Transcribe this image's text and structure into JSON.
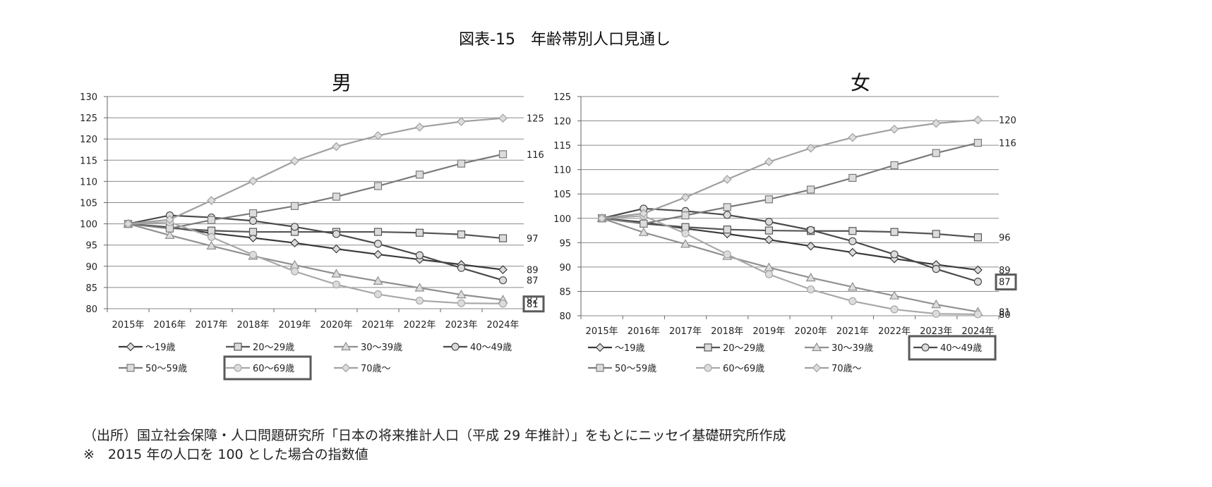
{
  "page": {
    "title": "図表-15　年齢帯別人口見通し",
    "source_note": "（出所）国立社会保障・人口問題研究所「日本の将来推計人口（平成 29 年推計）」をもとにニッセイ基礎研究所作成",
    "base_note": "※　2015 年の人口を 100 とした場合の指数値"
  },
  "chart_data": [
    {
      "type": "line",
      "title": "男",
      "categories": [
        "2015年",
        "2016年",
        "2017年",
        "2018年",
        "2019年",
        "2020年",
        "2021年",
        "2022年",
        "2023年",
        "2024年"
      ],
      "ylim": [
        80,
        130
      ],
      "yticks": [
        80,
        85,
        90,
        95,
        100,
        105,
        110,
        115,
        120,
        125,
        130
      ],
      "grid": true,
      "legend": "bottom",
      "series": [
        {
          "name": "～19歳",
          "marker": "diamond",
          "color": "#3a3a3a",
          "values": [
            100,
            99.2,
            97.8,
            96.7,
            95.5,
            94.1,
            92.8,
            91.6,
            90.4,
            89.2
          ],
          "end_label": "89"
        },
        {
          "name": "20～29歳",
          "marker": "square",
          "color": "#555555",
          "values": [
            100,
            99.0,
            98.4,
            98.1,
            98.1,
            98.1,
            98.1,
            97.9,
            97.5,
            96.6
          ],
          "end_label": "97"
        },
        {
          "name": "30～39歳",
          "marker": "triangle",
          "color": "#909090",
          "values": [
            100,
            97.3,
            94.8,
            92.4,
            90.3,
            88.2,
            86.5,
            84.9,
            83.3,
            82.1
          ],
          "end_label": "82"
        },
        {
          "name": "40～49歳",
          "marker": "circle",
          "color": "#4a4a4a",
          "values": [
            100,
            102.0,
            101.5,
            100.7,
            99.3,
            97.6,
            95.3,
            92.6,
            89.6,
            86.7
          ],
          "end_label": "87"
        },
        {
          "name": "50～59歳",
          "marker": "square",
          "color": "#7a7a7a",
          "values": [
            100,
            98.9,
            100.9,
            102.5,
            104.2,
            106.4,
            108.9,
            111.6,
            114.2,
            116.4
          ],
          "end_label": "116"
        },
        {
          "name": "60～69歳",
          "marker": "circle",
          "color": "#a8a8a8",
          "values": [
            100,
            100.4,
            96.9,
            92.7,
            88.8,
            85.7,
            83.4,
            81.9,
            81.3,
            81.2
          ],
          "end_label": "81",
          "highlight": true
        },
        {
          "name": "70歳～",
          "marker": "diamond",
          "color": "#a0a0a0",
          "values": [
            100,
            101.0,
            105.5,
            110.1,
            114.8,
            118.2,
            120.8,
            122.8,
            124.1,
            124.9
          ],
          "end_label": "125"
        }
      ]
    },
    {
      "type": "line",
      "title": "女",
      "categories": [
        "2015年",
        "2016年",
        "2017年",
        "2018年",
        "2019年",
        "2020年",
        "2021年",
        "2022年",
        "2023年",
        "2024年"
      ],
      "ylim": [
        80,
        125
      ],
      "yticks": [
        80,
        85,
        90,
        95,
        100,
        105,
        110,
        115,
        120,
        125
      ],
      "grid": true,
      "legend": "bottom",
      "series": [
        {
          "name": "～19歳",
          "marker": "diamond",
          "color": "#3a3a3a",
          "values": [
            100,
            99.2,
            97.9,
            96.8,
            95.6,
            94.3,
            93.0,
            91.7,
            90.5,
            89.4
          ],
          "end_label": "89"
        },
        {
          "name": "20～29歳",
          "marker": "square",
          "color": "#555555",
          "values": [
            100,
            98.9,
            98.2,
            97.7,
            97.5,
            97.4,
            97.4,
            97.2,
            96.8,
            96.1
          ],
          "end_label": "96"
        },
        {
          "name": "30～39歳",
          "marker": "triangle",
          "color": "#909090",
          "values": [
            100,
            97.1,
            94.7,
            92.2,
            89.9,
            87.8,
            85.9,
            84.1,
            82.3,
            80.8
          ],
          "end_label": "81"
        },
        {
          "name": "40～49歳",
          "marker": "circle",
          "color": "#4a4a4a",
          "values": [
            100,
            102.0,
            101.5,
            100.7,
            99.3,
            97.6,
            95.3,
            92.6,
            89.6,
            87.0
          ],
          "end_label": "87",
          "highlight": true
        },
        {
          "name": "50～59歳",
          "marker": "square",
          "color": "#7a7a7a",
          "values": [
            100,
            98.9,
            100.6,
            102.3,
            103.9,
            105.9,
            108.3,
            110.9,
            113.4,
            115.5
          ],
          "end_label": "116"
        },
        {
          "name": "60～69歳",
          "marker": "circle",
          "color": "#a8a8a8",
          "values": [
            100,
            100.5,
            96.9,
            92.6,
            88.5,
            85.4,
            83.0,
            81.3,
            80.4,
            80.3
          ],
          "end_label": "80"
        },
        {
          "name": "70歳～",
          "marker": "diamond",
          "color": "#a0a0a0",
          "values": [
            100,
            101.0,
            104.3,
            108.0,
            111.6,
            114.4,
            116.6,
            118.3,
            119.5,
            120.2
          ],
          "end_label": "120"
        }
      ]
    }
  ]
}
